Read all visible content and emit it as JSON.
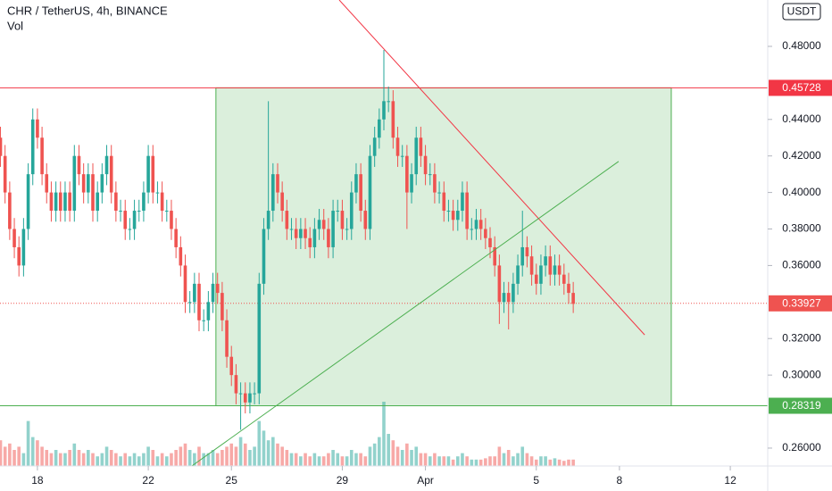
{
  "chart_data": {
    "type": "candlestick",
    "title": "CHR / TetherUS, 4h, BINANCE",
    "volume_label": "Vol",
    "currency_button": "USDT",
    "xlim": [
      16.65,
      44.35
    ],
    "ylim": [
      0.2502,
      0.5054
    ],
    "xticks": [
      18,
      22,
      25,
      29,
      {
        "value": 32,
        "label": "Apr"
      },
      {
        "value": 36,
        "label": "5"
      },
      {
        "value": 39,
        "label": "8"
      },
      {
        "value": 43,
        "label": "12"
      }
    ],
    "yticks": [
      {
        "value": 0.26,
        "label": "0.26000"
      },
      {
        "value": 0.3,
        "label": "0.30000"
      },
      {
        "value": 0.32,
        "label": "0.32000"
      },
      {
        "value": 0.36,
        "label": "0.36000"
      },
      {
        "value": 0.38,
        "label": "0.38000"
      },
      {
        "value": 0.4,
        "label": "0.40000"
      },
      {
        "value": 0.42,
        "label": "0.42000"
      },
      {
        "value": 0.44,
        "label": "0.44000"
      },
      {
        "value": 0.48,
        "label": "0.48000"
      }
    ],
    "up_color": "#26a69a",
    "down_color": "#ef5350",
    "x": [
      16.667,
      16.833,
      17,
      17.167,
      17.333,
      17.5,
      17.667,
      17.833,
      18,
      18.167,
      18.333,
      18.5,
      18.667,
      18.833,
      19,
      19.167,
      19.333,
      19.5,
      19.667,
      19.833,
      20,
      20.167,
      20.333,
      20.5,
      20.667,
      20.833,
      21,
      21.167,
      21.333,
      21.5,
      21.667,
      21.833,
      22,
      22.167,
      22.333,
      22.5,
      22.667,
      22.833,
      23,
      23.167,
      23.333,
      23.5,
      23.667,
      23.833,
      24,
      24.167,
      24.333,
      24.5,
      24.667,
      24.833,
      25,
      25.167,
      25.333,
      25.5,
      25.667,
      25.833,
      26,
      26.167,
      26.333,
      26.5,
      26.667,
      26.833,
      27,
      27.167,
      27.333,
      27.5,
      27.667,
      27.833,
      28,
      28.167,
      28.333,
      28.5,
      28.667,
      28.833,
      29,
      29.167,
      29.333,
      29.5,
      29.667,
      29.833,
      30,
      30.167,
      30.333,
      30.5,
      30.667,
      30.833,
      31,
      31.167,
      31.333,
      31.5,
      31.667,
      31.833,
      32,
      32.167,
      32.333,
      32.5,
      32.667,
      32.833,
      33,
      33.167,
      33.333,
      33.5,
      33.667,
      33.833,
      34,
      34.167,
      34.333,
      34.5,
      34.667,
      34.833,
      35,
      35.167,
      35.333,
      35.5,
      35.667,
      35.833,
      36,
      36.167,
      36.333,
      36.5,
      36.667,
      36.833,
      37,
      37.167,
      37.333
    ],
    "open": [
      0.43,
      0.42,
      0.4,
      0.38,
      0.37,
      0.36,
      0.38,
      0.41,
      0.44,
      0.43,
      0.41,
      0.4,
      0.39,
      0.4,
      0.39,
      0.4,
      0.39,
      0.42,
      0.41,
      0.4,
      0.41,
      0.39,
      0.4,
      0.41,
      0.42,
      0.4,
      0.39,
      0.39,
      0.38,
      0.38,
      0.39,
      0.39,
      0.4,
      0.42,
      0.4,
      0.4,
      0.39,
      0.39,
      0.38,
      0.37,
      0.36,
      0.34,
      0.34,
      0.35,
      0.33,
      0.33,
      0.34,
      0.35,
      0.345,
      0.33,
      0.31,
      0.3,
      0.29,
      0.29,
      0.285,
      0.29,
      0.29,
      0.35,
      0.38,
      0.39,
      0.41,
      0.4,
      0.39,
      0.38,
      0.38,
      0.375,
      0.38,
      0.375,
      0.37,
      0.38,
      0.385,
      0.38,
      0.37,
      0.39,
      0.39,
      0.38,
      0.38,
      0.4,
      0.41,
      0.39,
      0.38,
      0.42,
      0.43,
      0.44,
      0.45,
      0.45,
      0.43,
      0.42,
      0.42,
      0.4,
      0.41,
      0.43,
      0.42,
      0.41,
      0.41,
      0.4,
      0.4,
      0.39,
      0.39,
      0.385,
      0.39,
      0.4,
      0.38,
      0.38,
      0.385,
      0.38,
      0.375,
      0.37,
      0.36,
      0.34,
      0.345,
      0.34,
      0.35,
      0.36,
      0.37,
      0.365,
      0.355,
      0.35,
      0.36,
      0.365,
      0.355,
      0.36,
      0.355,
      0.35,
      0.345
    ],
    "high": [
      0.436,
      0.426,
      0.406,
      0.386,
      0.376,
      0.386,
      0.416,
      0.446,
      0.446,
      0.436,
      0.416,
      0.406,
      0.406,
      0.406,
      0.406,
      0.406,
      0.426,
      0.426,
      0.416,
      0.416,
      0.416,
      0.406,
      0.416,
      0.426,
      0.426,
      0.406,
      0.396,
      0.396,
      0.386,
      0.396,
      0.396,
      0.406,
      0.426,
      0.426,
      0.406,
      0.406,
      0.396,
      0.396,
      0.386,
      0.376,
      0.366,
      0.346,
      0.356,
      0.356,
      0.336,
      0.346,
      0.356,
      0.356,
      0.351,
      0.336,
      0.316,
      0.306,
      0.296,
      0.296,
      0.296,
      0.296,
      0.356,
      0.386,
      0.45,
      0.416,
      0.416,
      0.406,
      0.396,
      0.386,
      0.386,
      0.386,
      0.386,
      0.381,
      0.386,
      0.391,
      0.391,
      0.386,
      0.396,
      0.396,
      0.396,
      0.386,
      0.406,
      0.416,
      0.416,
      0.396,
      0.426,
      0.436,
      0.446,
      0.478,
      0.458,
      0.456,
      0.436,
      0.426,
      0.426,
      0.416,
      0.436,
      0.436,
      0.426,
      0.416,
      0.416,
      0.406,
      0.406,
      0.396,
      0.396,
      0.396,
      0.406,
      0.406,
      0.386,
      0.391,
      0.391,
      0.386,
      0.381,
      0.376,
      0.366,
      0.351,
      0.351,
      0.356,
      0.366,
      0.39,
      0.376,
      0.371,
      0.361,
      0.366,
      0.371,
      0.371,
      0.366,
      0.366,
      0.361,
      0.356,
      0.351
    ],
    "low": [
      0.414,
      0.394,
      0.374,
      0.364,
      0.354,
      0.354,
      0.374,
      0.404,
      0.424,
      0.404,
      0.394,
      0.384,
      0.384,
      0.384,
      0.384,
      0.384,
      0.384,
      0.404,
      0.394,
      0.394,
      0.384,
      0.384,
      0.394,
      0.404,
      0.394,
      0.384,
      0.384,
      0.374,
      0.374,
      0.374,
      0.384,
      0.384,
      0.394,
      0.394,
      0.394,
      0.384,
      0.384,
      0.374,
      0.364,
      0.354,
      0.334,
      0.334,
      0.334,
      0.324,
      0.324,
      0.324,
      0.334,
      0.339,
      0.324,
      0.304,
      0.294,
      0.284,
      0.27,
      0.279,
      0.279,
      0.284,
      0.284,
      0.344,
      0.374,
      0.384,
      0.394,
      0.384,
      0.374,
      0.374,
      0.369,
      0.369,
      0.369,
      0.364,
      0.364,
      0.374,
      0.374,
      0.364,
      0.364,
      0.384,
      0.374,
      0.374,
      0.374,
      0.394,
      0.384,
      0.374,
      0.374,
      0.414,
      0.424,
      0.434,
      0.444,
      0.424,
      0.414,
      0.414,
      0.38,
      0.394,
      0.404,
      0.414,
      0.404,
      0.404,
      0.394,
      0.394,
      0.384,
      0.384,
      0.379,
      0.379,
      0.384,
      0.374,
      0.374,
      0.374,
      0.374,
      0.369,
      0.364,
      0.354,
      0.328,
      0.334,
      0.325,
      0.334,
      0.344,
      0.354,
      0.359,
      0.349,
      0.344,
      0.344,
      0.354,
      0.349,
      0.349,
      0.349,
      0.344,
      0.339,
      0.334
    ],
    "close": [
      0.42,
      0.4,
      0.38,
      0.37,
      0.36,
      0.38,
      0.41,
      0.44,
      0.43,
      0.41,
      0.4,
      0.39,
      0.4,
      0.39,
      0.4,
      0.39,
      0.42,
      0.41,
      0.4,
      0.41,
      0.39,
      0.4,
      0.41,
      0.42,
      0.4,
      0.39,
      0.39,
      0.38,
      0.38,
      0.39,
      0.39,
      0.4,
      0.42,
      0.4,
      0.4,
      0.39,
      0.39,
      0.38,
      0.37,
      0.36,
      0.34,
      0.34,
      0.35,
      0.33,
      0.33,
      0.34,
      0.35,
      0.345,
      0.33,
      0.31,
      0.3,
      0.29,
      0.29,
      0.285,
      0.29,
      0.29,
      0.35,
      0.38,
      0.39,
      0.41,
      0.4,
      0.39,
      0.38,
      0.38,
      0.375,
      0.38,
      0.375,
      0.37,
      0.38,
      0.385,
      0.38,
      0.37,
      0.39,
      0.39,
      0.38,
      0.38,
      0.4,
      0.41,
      0.39,
      0.38,
      0.42,
      0.43,
      0.44,
      0.45,
      0.45,
      0.43,
      0.42,
      0.42,
      0.4,
      0.41,
      0.43,
      0.42,
      0.41,
      0.41,
      0.4,
      0.4,
      0.39,
      0.39,
      0.385,
      0.39,
      0.4,
      0.38,
      0.38,
      0.385,
      0.38,
      0.375,
      0.37,
      0.36,
      0.34,
      0.345,
      0.34,
      0.35,
      0.36,
      0.37,
      0.365,
      0.355,
      0.35,
      0.36,
      0.365,
      0.355,
      0.36,
      0.355,
      0.35,
      0.345,
      0.339
    ],
    "volume": [
      40,
      30,
      35,
      25,
      30,
      20,
      70,
      45,
      40,
      30,
      25,
      20,
      25,
      20,
      20,
      25,
      35,
      25,
      20,
      25,
      20,
      15,
      20,
      30,
      25,
      20,
      15,
      20,
      15,
      20,
      15,
      20,
      30,
      25,
      15,
      20,
      15,
      20,
      25,
      30,
      35,
      25,
      20,
      30,
      20,
      20,
      25,
      20,
      25,
      30,
      35,
      30,
      45,
      35,
      25,
      30,
      70,
      55,
      40,
      45,
      35,
      30,
      25,
      20,
      20,
      15,
      20,
      15,
      20,
      15,
      15,
      20,
      25,
      20,
      15,
      15,
      25,
      20,
      20,
      15,
      30,
      35,
      45,
      100,
      50,
      40,
      30,
      25,
      35,
      25,
      30,
      20,
      20,
      15,
      20,
      15,
      15,
      15,
      10,
      15,
      20,
      15,
      10,
      10,
      10,
      12,
      15,
      15,
      30,
      20,
      25,
      15,
      20,
      30,
      20,
      15,
      10,
      15,
      15,
      10,
      12,
      10,
      8,
      10,
      10
    ],
    "zone": {
      "x": [
        24.44,
        40.87
      ],
      "y": [
        0.28319,
        0.45728
      ],
      "color": "#4caf50"
    },
    "trendlines": [
      {
        "x": [
          28.89,
          39.91
        ],
        "y": [
          0.5054,
          0.322
        ],
        "color": "#f23645"
      },
      {
        "x": [
          23.57,
          38.97
        ],
        "y": [
          0.2502,
          0.417
        ],
        "color": "#4caf50"
      }
    ],
    "price_lines": [
      {
        "value": 0.45728,
        "color": "#f23645",
        "style": "solid"
      },
      {
        "value": 0.28319,
        "color": "#4caf50",
        "style": "solid"
      },
      {
        "value": 0.33927,
        "color": "#ef5350",
        "style": "dotted"
      }
    ]
  }
}
